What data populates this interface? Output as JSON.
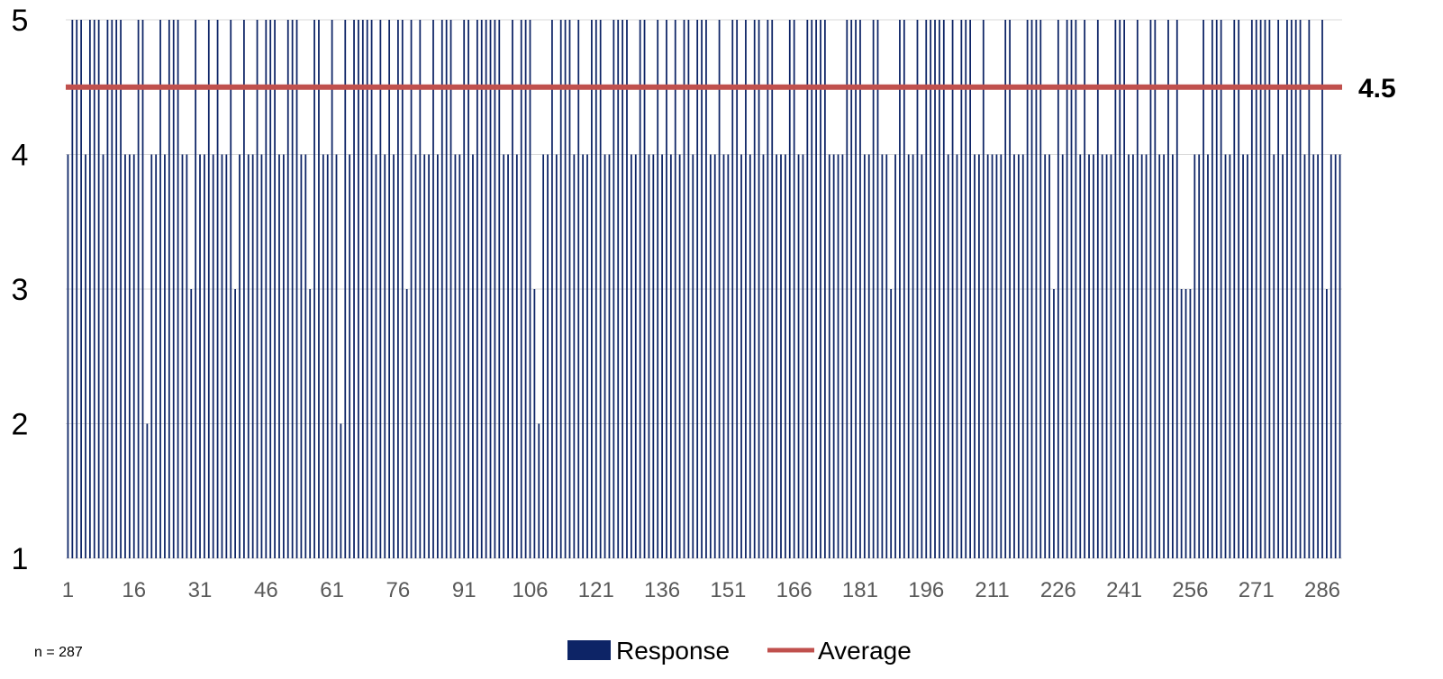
{
  "chart_data": {
    "type": "bar",
    "n_label": "n = 287",
    "x": {
      "min": 1,
      "max": 287,
      "ticks": [
        "1",
        "16",
        "31",
        "46",
        "61",
        "76",
        "91",
        "106",
        "121",
        "136",
        "151",
        "166",
        "181",
        "196",
        "211",
        "226",
        "241",
        "256",
        "271",
        "286"
      ]
    },
    "y": {
      "min": 1,
      "max": 5,
      "ticks": [
        "1",
        "2",
        "3",
        "4",
        "5"
      ],
      "grid": true
    },
    "series": [
      {
        "name": "Response",
        "kind": "bar",
        "color": "#0d2466",
        "values": [
          4,
          5,
          5,
          5,
          4,
          5,
          5,
          5,
          4,
          5,
          5,
          5,
          5,
          4,
          4,
          4,
          5,
          5,
          2,
          4,
          4,
          5,
          4,
          5,
          5,
          5,
          4,
          4,
          3,
          5,
          4,
          4,
          5,
          4,
          5,
          4,
          4,
          5,
          3,
          4,
          5,
          4,
          4,
          5,
          4,
          5,
          5,
          5,
          4,
          4,
          5,
          5,
          5,
          4,
          4,
          3,
          5,
          5,
          4,
          4,
          5,
          4,
          2,
          5,
          4,
          5,
          5,
          5,
          5,
          5,
          4,
          5,
          4,
          5,
          4,
          5,
          5,
          3,
          5,
          4,
          5,
          4,
          4,
          5,
          4,
          5,
          5,
          5,
          4,
          4,
          5,
          5,
          4,
          5,
          5,
          5,
          5,
          5,
          5,
          4,
          4,
          5,
          4,
          5,
          5,
          5,
          3,
          2,
          4,
          4,
          5,
          4,
          5,
          5,
          5,
          4,
          5,
          4,
          4,
          5,
          5,
          5,
          4,
          4,
          5,
          5,
          5,
          5,
          4,
          4,
          5,
          5,
          4,
          4,
          5,
          4,
          5,
          4,
          5,
          4,
          5,
          5,
          4,
          5,
          5,
          5,
          4,
          4,
          5,
          4,
          4,
          5,
          5,
          4,
          5,
          4,
          5,
          5,
          4,
          5,
          5,
          4,
          4,
          4,
          5,
          5,
          4,
          4,
          5,
          5,
          5,
          5,
          5,
          4,
          4,
          4,
          4,
          5,
          5,
          5,
          5,
          4,
          4,
          5,
          5,
          4,
          4,
          3,
          4,
          5,
          5,
          4,
          4,
          5,
          4,
          5,
          5,
          5,
          5,
          5,
          4,
          5,
          4,
          5,
          5,
          5,
          4,
          4,
          5,
          4,
          4,
          4,
          4,
          5,
          5,
          4,
          4,
          4,
          5,
          5,
          5,
          5,
          4,
          4,
          3,
          5,
          4,
          5,
          5,
          5,
          4,
          5,
          4,
          4,
          5,
          4,
          4,
          4,
          5,
          5,
          5,
          4,
          4,
          5,
          4,
          4,
          5,
          5,
          4,
          4,
          5,
          4,
          5,
          3,
          3,
          3,
          4,
          4,
          5,
          4,
          5,
          5,
          5,
          4,
          4,
          5,
          5,
          4,
          4,
          5,
          5,
          5,
          5,
          5,
          4,
          5,
          4,
          5,
          5,
          5,
          5,
          4,
          5,
          4,
          4,
          5,
          3,
          4,
          4,
          4
        ]
      },
      {
        "name": "Average",
        "kind": "line",
        "color": "#c0504d",
        "value": 4.5,
        "label": "4.5"
      }
    ],
    "legend": {
      "position": "bottom"
    }
  }
}
